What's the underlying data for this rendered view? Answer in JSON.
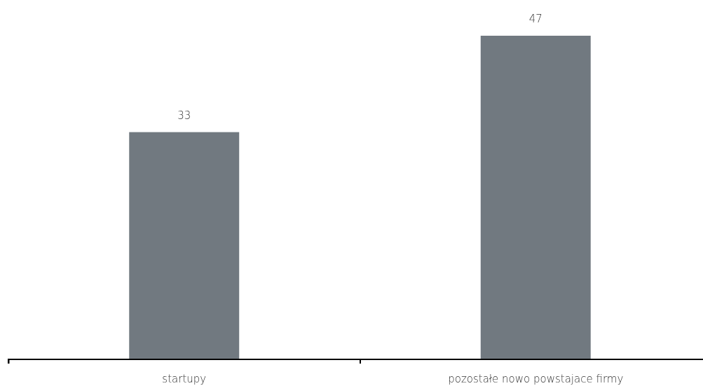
{
  "chart_data": {
    "type": "bar",
    "categories": [
      "startupy",
      "pozostałe nowo powstajace firmy"
    ],
    "values": [
      33,
      47
    ],
    "color": "#717980",
    "data_labels": true,
    "tick_labels": "x"
  }
}
